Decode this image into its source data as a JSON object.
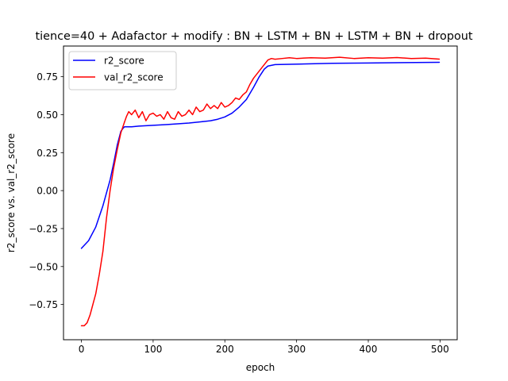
{
  "chart_data": {
    "type": "line",
    "title": "tience=40 + Adafactor + modify : BN + LSTM + BN + LSTM + BN + dropout",
    "xlabel": "epoch",
    "ylabel": "r2_score vs. val_r2_score",
    "xlim": [
      -24.95,
      523.95
    ],
    "ylim": [
      -0.982,
      0.952
    ],
    "xticks": [
      0,
      100,
      200,
      300,
      400,
      500
    ],
    "xtick_labels": [
      "0",
      "100",
      "200",
      "300",
      "400",
      "500"
    ],
    "yticks": [
      -0.75,
      -0.5,
      -0.25,
      0.0,
      0.25,
      0.5,
      0.75
    ],
    "ytick_labels": [
      "−0.75",
      "−0.50",
      "−0.25",
      "0.00",
      "0.25",
      "0.50",
      "0.75"
    ],
    "grid": false,
    "legend_position": "upper-left",
    "series": [
      {
        "name": "r2_score",
        "color": "#0000ff",
        "x": [
          0,
          10,
          20,
          30,
          40,
          45,
          50,
          55,
          58,
          60,
          65,
          70,
          80,
          100,
          120,
          150,
          170,
          180,
          190,
          200,
          210,
          220,
          230,
          240,
          248,
          255,
          260,
          270,
          290,
          320,
          350,
          400,
          450,
          499
        ],
        "y": [
          -0.38,
          -0.33,
          -0.24,
          -0.1,
          0.07,
          0.18,
          0.3,
          0.39,
          0.41,
          0.42,
          0.42,
          0.42,
          0.425,
          0.43,
          0.435,
          0.445,
          0.455,
          0.46,
          0.47,
          0.485,
          0.51,
          0.55,
          0.6,
          0.68,
          0.75,
          0.8,
          0.82,
          0.83,
          0.832,
          0.835,
          0.838,
          0.84,
          0.843,
          0.845
        ]
      },
      {
        "name": "val_r2_score",
        "color": "#ff0000",
        "x": [
          0,
          4,
          8,
          12,
          16,
          20,
          25,
          30,
          35,
          40,
          45,
          50,
          55,
          60,
          63,
          66,
          70,
          75,
          80,
          85,
          90,
          95,
          100,
          105,
          110,
          115,
          120,
          125,
          130,
          135,
          140,
          145,
          150,
          155,
          160,
          165,
          170,
          175,
          180,
          185,
          190,
          195,
          200,
          205,
          210,
          215,
          220,
          225,
          230,
          235,
          240,
          245,
          250,
          255,
          260,
          265,
          270,
          280,
          290,
          300,
          320,
          340,
          360,
          380,
          400,
          420,
          440,
          460,
          480,
          499
        ],
        "y": [
          -0.89,
          -0.89,
          -0.87,
          -0.82,
          -0.75,
          -0.68,
          -0.55,
          -0.4,
          -0.18,
          0.0,
          0.15,
          0.27,
          0.38,
          0.45,
          0.49,
          0.52,
          0.5,
          0.53,
          0.48,
          0.52,
          0.46,
          0.5,
          0.51,
          0.49,
          0.5,
          0.47,
          0.52,
          0.48,
          0.47,
          0.52,
          0.49,
          0.5,
          0.53,
          0.5,
          0.55,
          0.52,
          0.53,
          0.57,
          0.54,
          0.56,
          0.54,
          0.58,
          0.55,
          0.56,
          0.58,
          0.61,
          0.6,
          0.63,
          0.65,
          0.7,
          0.74,
          0.77,
          0.8,
          0.83,
          0.86,
          0.87,
          0.865,
          0.87,
          0.875,
          0.87,
          0.875,
          0.872,
          0.878,
          0.87,
          0.875,
          0.872,
          0.876,
          0.87,
          0.872,
          0.866
        ]
      }
    ]
  }
}
